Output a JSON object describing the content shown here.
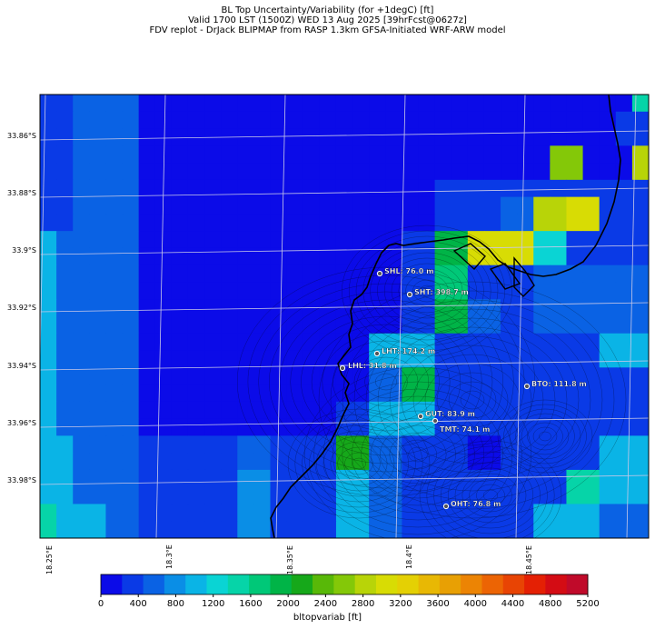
{
  "title": {
    "line1": "BL Top Uncertainty/Variability (for +1degC) [ft]",
    "line2": "Valid 1700 LST (1500Z) WED 13 Aug 2025 [39hrFcst@0627z]",
    "line3": "FDV replot - DrJack BLIPMAP from RASP 1.3km GFSA-Initiated WRF-ARW model"
  },
  "lat_labels": [
    "33.86°S",
    "33.88°S",
    "33.9°S",
    "33.92°S",
    "33.94°S",
    "33.96°S",
    "33.98°S"
  ],
  "lon_labels": [
    "18.25°E",
    "18.3°E",
    "18.35°E",
    "18.4°E",
    "18.45°E"
  ],
  "stations": [
    {
      "name": "SHL",
      "label": "SHL: 76.0 m"
    },
    {
      "name": "SHT",
      "label": "SHT: 398.7 m"
    },
    {
      "name": "LHT",
      "label": "LHT: 174.2 m"
    },
    {
      "name": "LHL",
      "label": "LHL: 31.8 m"
    },
    {
      "name": "BTO",
      "label": "BTO: 111.8 m"
    },
    {
      "name": "GUT",
      "label": "GUT: 83.9 m"
    },
    {
      "name": "TMT",
      "label": "TMT: 74.1 m"
    },
    {
      "name": "OHT",
      "label": "OHT: 76.8 m"
    }
  ],
  "colorbar": {
    "ticks": [
      "0",
      "400",
      "800",
      "1200",
      "1600",
      "2000",
      "2400",
      "2800",
      "3200",
      "3600",
      "4000",
      "4400",
      "4800",
      "5200"
    ],
    "label": "bltopvariab [ft]",
    "colors": [
      "#0b0be8",
      "#0a3ae6",
      "#0a62e4",
      "#0a8ee6",
      "#0ab4e6",
      "#0ad4d4",
      "#06d4a8",
      "#00c878",
      "#00b447",
      "#16a81a",
      "#58b808",
      "#84c808",
      "#b8d408",
      "#d8dc04",
      "#e4d004",
      "#e8b804",
      "#e8a004",
      "#ec8404",
      "#ec6404",
      "#e84404",
      "#e42004",
      "#d40c14",
      "#c00a2a"
    ]
  },
  "field": {
    "min": 0,
    "max": 5200,
    "rows": [
      [
        300,
        300,
        600,
        600,
        600,
        600,
        100,
        100,
        100,
        100,
        100,
        100,
        100,
        100,
        100,
        100,
        100,
        100,
        100,
        100,
        100,
        100,
        100,
        100,
        100,
        100,
        100,
        100,
        100,
        100,
        100,
        100,
        100,
        100,
        100,
        100,
        1400
      ],
      [
        300,
        300,
        600,
        600,
        600,
        600,
        100,
        100,
        100,
        100,
        100,
        100,
        100,
        100,
        100,
        100,
        100,
        100,
        100,
        100,
        100,
        100,
        100,
        100,
        100,
        100,
        100,
        100,
        100,
        100,
        100,
        100,
        100,
        100,
        100,
        300,
        300
      ],
      [
        300,
        300,
        600,
        600,
        600,
        600,
        100,
        100,
        100,
        100,
        100,
        100,
        100,
        100,
        100,
        100,
        100,
        100,
        100,
        100,
        100,
        100,
        100,
        100,
        100,
        100,
        100,
        100,
        100,
        100,
        100,
        100,
        100,
        100,
        100,
        300,
        300
      ],
      [
        300,
        300,
        600,
        600,
        600,
        600,
        100,
        100,
        100,
        100,
        100,
        100,
        100,
        100,
        100,
        100,
        100,
        100,
        100,
        100,
        100,
        100,
        100,
        100,
        100,
        100,
        100,
        100,
        100,
        100,
        100,
        2600,
        2600,
        100,
        100,
        100,
        2900
      ],
      [
        300,
        300,
        600,
        600,
        600,
        600,
        100,
        100,
        100,
        100,
        100,
        100,
        100,
        100,
        100,
        100,
        100,
        100,
        100,
        100,
        100,
        100,
        100,
        100,
        100,
        100,
        100,
        100,
        100,
        100,
        100,
        2600,
        2600,
        100,
        100,
        100,
        2900
      ],
      [
        300,
        300,
        600,
        600,
        600,
        600,
        100,
        100,
        100,
        100,
        100,
        100,
        100,
        100,
        100,
        100,
        100,
        100,
        100,
        100,
        100,
        100,
        100,
        100,
        300,
        300,
        300,
        300,
        300,
        300,
        300,
        300,
        300,
        300,
        300,
        300,
        300
      ],
      [
        300,
        300,
        600,
        600,
        600,
        600,
        100,
        100,
        100,
        100,
        100,
        100,
        100,
        100,
        100,
        100,
        100,
        100,
        100,
        100,
        100,
        100,
        100,
        100,
        300,
        300,
        300,
        300,
        600,
        600,
        2800,
        2800,
        3100,
        3100,
        300,
        300,
        300
      ],
      [
        300,
        300,
        600,
        600,
        600,
        600,
        100,
        100,
        100,
        100,
        100,
        100,
        100,
        100,
        100,
        100,
        100,
        100,
        100,
        100,
        100,
        100,
        100,
        100,
        300,
        300,
        300,
        300,
        600,
        600,
        2800,
        2800,
        3100,
        3100,
        300,
        300,
        300
      ],
      [
        1000,
        600,
        600,
        600,
        600,
        600,
        100,
        100,
        100,
        100,
        100,
        100,
        100,
        100,
        100,
        100,
        100,
        100,
        100,
        100,
        100,
        100,
        300,
        300,
        2000,
        2000,
        3000,
        3000,
        3100,
        3100,
        1300,
        1300,
        300,
        300,
        300,
        300,
        300
      ],
      [
        1000,
        600,
        600,
        600,
        600,
        600,
        100,
        100,
        100,
        100,
        100,
        100,
        100,
        100,
        100,
        100,
        100,
        100,
        100,
        100,
        100,
        100,
        300,
        300,
        2000,
        2000,
        3000,
        3000,
        3100,
        3100,
        1300,
        1300,
        300,
        300,
        300,
        300,
        300
      ],
      [
        1000,
        600,
        600,
        600,
        600,
        600,
        100,
        100,
        100,
        100,
        100,
        100,
        100,
        100,
        100,
        100,
        100,
        100,
        100,
        100,
        100,
        100,
        300,
        300,
        1800,
        1800,
        300,
        300,
        300,
        300,
        600,
        600,
        600,
        600,
        600,
        600,
        600
      ],
      [
        1000,
        600,
        600,
        600,
        600,
        600,
        100,
        100,
        100,
        100,
        100,
        100,
        100,
        100,
        100,
        100,
        100,
        100,
        100,
        100,
        100,
        100,
        300,
        300,
        1800,
        1800,
        300,
        300,
        300,
        300,
        600,
        600,
        600,
        600,
        600,
        600,
        600
      ],
      [
        1000,
        600,
        600,
        600,
        600,
        600,
        100,
        100,
        100,
        100,
        100,
        100,
        100,
        100,
        100,
        100,
        100,
        100,
        100,
        100,
        100,
        100,
        300,
        300,
        2000,
        2000,
        600,
        600,
        300,
        300,
        600,
        600,
        600,
        600,
        600,
        600,
        600
      ],
      [
        1000,
        600,
        600,
        600,
        600,
        600,
        100,
        100,
        100,
        100,
        100,
        100,
        100,
        100,
        100,
        100,
        100,
        100,
        100,
        100,
        100,
        100,
        300,
        300,
        2000,
        2000,
        600,
        600,
        300,
        300,
        600,
        600,
        600,
        600,
        600,
        600,
        600
      ],
      [
        1000,
        600,
        600,
        600,
        600,
        600,
        100,
        100,
        100,
        100,
        100,
        100,
        100,
        100,
        100,
        100,
        100,
        100,
        100,
        100,
        1100,
        1100,
        1100,
        1100,
        300,
        300,
        300,
        300,
        300,
        300,
        300,
        300,
        300,
        300,
        1000,
        1000,
        1000
      ],
      [
        1000,
        600,
        600,
        600,
        600,
        600,
        100,
        100,
        100,
        100,
        100,
        100,
        100,
        100,
        100,
        100,
        100,
        100,
        100,
        100,
        1100,
        1100,
        1100,
        1100,
        300,
        300,
        300,
        300,
        300,
        300,
        300,
        300,
        300,
        300,
        1000,
        1000,
        1000
      ],
      [
        1000,
        600,
        600,
        600,
        600,
        600,
        100,
        100,
        100,
        100,
        100,
        100,
        100,
        100,
        100,
        100,
        100,
        100,
        100,
        100,
        600,
        600,
        1900,
        1900,
        300,
        300,
        300,
        300,
        300,
        300,
        300,
        300,
        300,
        300,
        300,
        300,
        300
      ],
      [
        1000,
        600,
        600,
        600,
        600,
        600,
        100,
        100,
        100,
        100,
        100,
        100,
        100,
        100,
        100,
        100,
        100,
        100,
        100,
        100,
        600,
        600,
        1900,
        1900,
        300,
        300,
        300,
        300,
        300,
        300,
        300,
        300,
        300,
        300,
        300,
        300,
        300
      ],
      [
        1000,
        600,
        600,
        600,
        600,
        600,
        100,
        100,
        100,
        100,
        100,
        100,
        100,
        100,
        100,
        100,
        100,
        100,
        300,
        300,
        1000,
        1000,
        1000,
        1000,
        300,
        300,
        300,
        300,
        300,
        300,
        300,
        300,
        300,
        300,
        300,
        300,
        300
      ],
      [
        1000,
        600,
        600,
        600,
        600,
        600,
        100,
        100,
        100,
        100,
        100,
        100,
        100,
        100,
        100,
        100,
        100,
        100,
        300,
        300,
        1000,
        1000,
        1000,
        1000,
        300,
        300,
        300,
        300,
        300,
        300,
        300,
        300,
        300,
        300,
        300,
        300,
        300
      ],
      [
        1000,
        1000,
        600,
        600,
        600,
        600,
        300,
        300,
        300,
        300,
        300,
        300,
        600,
        600,
        300,
        300,
        300,
        300,
        2200,
        2200,
        600,
        600,
        300,
        300,
        300,
        300,
        100,
        100,
        300,
        300,
        300,
        300,
        300,
        300,
        1000,
        1000,
        1000
      ],
      [
        1000,
        1000,
        600,
        600,
        600,
        600,
        300,
        300,
        300,
        300,
        300,
        300,
        600,
        600,
        300,
        300,
        300,
        300,
        2200,
        2200,
        600,
        600,
        300,
        300,
        300,
        300,
        100,
        100,
        300,
        300,
        300,
        300,
        300,
        300,
        1000,
        1000,
        1000
      ],
      [
        1000,
        1000,
        600,
        600,
        600,
        600,
        300,
        300,
        300,
        300,
        300,
        300,
        800,
        800,
        300,
        300,
        300,
        300,
        1000,
        1000,
        600,
        600,
        300,
        300,
        300,
        300,
        300,
        300,
        300,
        300,
        300,
        300,
        1500,
        1500,
        1000,
        1000,
        1000
      ],
      [
        1000,
        1000,
        600,
        600,
        600,
        600,
        300,
        300,
        300,
        300,
        300,
        300,
        800,
        800,
        300,
        300,
        300,
        300,
        1000,
        1000,
        600,
        600,
        300,
        300,
        300,
        300,
        300,
        300,
        300,
        300,
        300,
        300,
        1500,
        1500,
        1000,
        1000,
        1000
      ],
      [
        1400,
        1000,
        1000,
        1000,
        600,
        600,
        300,
        300,
        300,
        300,
        300,
        300,
        800,
        800,
        300,
        300,
        300,
        300,
        1000,
        1000,
        600,
        600,
        300,
        300,
        300,
        300,
        300,
        300,
        300,
        300,
        1000,
        1000,
        1000,
        1000,
        600,
        600,
        600
      ],
      [
        1400,
        1000,
        1000,
        1000,
        600,
        600,
        300,
        300,
        300,
        300,
        300,
        300,
        800,
        800,
        300,
        300,
        300,
        300,
        1000,
        1000,
        600,
        600,
        300,
        300,
        300,
        300,
        300,
        300,
        300,
        300,
        1000,
        1000,
        1000,
        1000,
        600,
        600,
        600
      ]
    ]
  }
}
